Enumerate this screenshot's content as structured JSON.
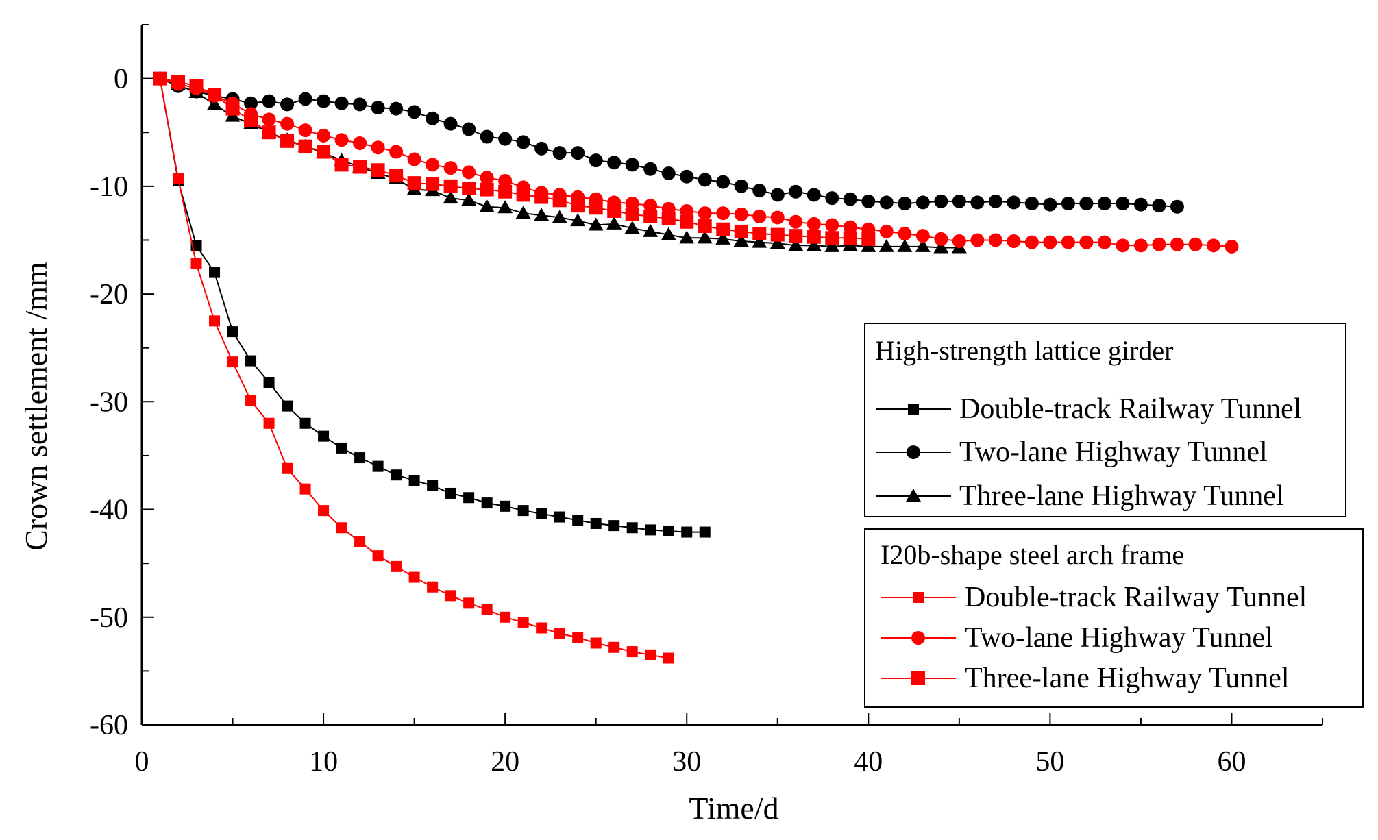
{
  "chart_data": {
    "type": "line",
    "title": "",
    "xlabel": "Time/d",
    "ylabel": "Crown settlement  /mm",
    "xlim": [
      0,
      65
    ],
    "ylim": [
      -60,
      5
    ],
    "xticks": [
      0,
      10,
      20,
      30,
      40,
      50,
      60
    ],
    "yticks": [
      0,
      -10,
      -20,
      -30,
      -40,
      -50,
      -60
    ],
    "grid": false,
    "legend": [
      {
        "title": "High-strength lattice girder",
        "position": "right-middle",
        "entries": [
          "Double-track Railway Tunnel",
          "Two-lane Highway Tunnel",
          "Three-lane Highway Tunnel"
        ]
      },
      {
        "title": "I20b-shape steel arch frame",
        "position": "right-bottom",
        "entries": [
          "Double-track Railway Tunnel",
          "Two-lane Highway Tunnel",
          "Three-lane Highway Tunnel"
        ]
      }
    ],
    "series": [
      {
        "name": "Double-track Railway Tunnel",
        "group": "High-strength lattice girder",
        "color": "#000000",
        "marker": "square",
        "x": [
          1,
          2,
          3,
          4,
          5,
          6,
          7,
          8,
          9,
          10,
          11,
          12,
          13,
          14,
          15,
          16,
          17,
          18,
          19,
          20,
          21,
          22,
          23,
          24,
          25,
          26,
          27,
          28,
          29,
          30,
          31
        ],
        "y": [
          0,
          -9.5,
          -15.5,
          -18,
          -23.5,
          -26.2,
          -28.2,
          -30.4,
          -32,
          -33.2,
          -34.3,
          -35.2,
          -36,
          -36.8,
          -37.3,
          -37.8,
          -38.5,
          -38.9,
          -39.4,
          -39.7,
          -40.1,
          -40.4,
          -40.7,
          -41,
          -41.3,
          -41.5,
          -41.7,
          -41.9,
          -42,
          -42.1,
          -42.1
        ]
      },
      {
        "name": "Two-lane Highway Tunnel",
        "group": "High-strength lattice girder",
        "color": "#000000",
        "marker": "circle",
        "x": [
          1,
          2,
          3,
          4,
          5,
          6,
          7,
          8,
          9,
          10,
          11,
          12,
          13,
          14,
          15,
          16,
          17,
          18,
          19,
          20,
          21,
          22,
          23,
          24,
          25,
          26,
          27,
          28,
          29,
          30,
          31,
          32,
          33,
          34,
          35,
          36,
          37,
          38,
          39,
          40,
          41,
          42,
          43,
          44,
          45,
          46,
          47,
          48,
          49,
          50,
          51,
          52,
          53,
          54,
          55,
          56,
          57
        ],
        "y": [
          0,
          -0.7,
          -1.2,
          -1.6,
          -1.9,
          -2.3,
          -2.1,
          -2.4,
          -1.9,
          -2.1,
          -2.3,
          -2.4,
          -2.7,
          -2.8,
          -3.1,
          -3.7,
          -4.2,
          -4.7,
          -5.4,
          -5.6,
          -5.9,
          -6.5,
          -6.9,
          -6.9,
          -7.6,
          -7.8,
          -8,
          -8.4,
          -8.8,
          -9.1,
          -9.4,
          -9.6,
          -10,
          -10.4,
          -10.8,
          -10.5,
          -10.8,
          -11.1,
          -11.2,
          -11.4,
          -11.5,
          -11.6,
          -11.5,
          -11.4,
          -11.4,
          -11.5,
          -11.4,
          -11.5,
          -11.6,
          -11.7,
          -11.6,
          -11.6,
          -11.6,
          -11.6,
          -11.7,
          -11.8,
          -11.9
        ]
      },
      {
        "name": "Three-lane Highway Tunnel",
        "group": "High-strength lattice girder",
        "color": "#000000",
        "marker": "triangle",
        "x": [
          1,
          2,
          3,
          4,
          5,
          6,
          7,
          8,
          9,
          10,
          11,
          12,
          13,
          14,
          15,
          16,
          17,
          18,
          19,
          20,
          21,
          22,
          23,
          24,
          25,
          26,
          27,
          28,
          29,
          30,
          31,
          32,
          33,
          34,
          35,
          36,
          37,
          38,
          39,
          40,
          41,
          42,
          43,
          44,
          45
        ],
        "y": [
          0,
          -0.6,
          -1.3,
          -2.4,
          -3.5,
          -4.2,
          -5,
          -5.7,
          -6.3,
          -6.9,
          -7.6,
          -8.2,
          -8.8,
          -9.3,
          -10.3,
          -10.4,
          -11.1,
          -11.3,
          -11.9,
          -12,
          -12.5,
          -12.7,
          -12.9,
          -13.2,
          -13.6,
          -13.5,
          -13.9,
          -14.2,
          -14.5,
          -14.8,
          -14.8,
          -14.9,
          -15.1,
          -15.2,
          -15.3,
          -15.5,
          -15.5,
          -15.6,
          -15.5,
          -15.6,
          -15.6,
          -15.6,
          -15.6,
          -15.7,
          -15.7
        ]
      },
      {
        "name": "Double-track Railway Tunnel",
        "group": "I20b-shape steel arch frame",
        "color": "#ff0000",
        "marker": "square",
        "x": [
          1,
          2,
          3,
          4,
          5,
          6,
          7,
          8,
          9,
          10,
          11,
          12,
          13,
          14,
          15,
          16,
          17,
          18,
          19,
          20,
          21,
          22,
          23,
          24,
          25,
          26,
          27,
          28,
          29
        ],
        "y": [
          0,
          -9.3,
          -17.2,
          -22.5,
          -26.3,
          -29.9,
          -32,
          -36.2,
          -38.1,
          -40.1,
          -41.7,
          -43,
          -44.3,
          -45.3,
          -46.3,
          -47.2,
          -48,
          -48.7,
          -49.3,
          -50,
          -50.5,
          -51,
          -51.5,
          -51.9,
          -52.4,
          -52.8,
          -53.2,
          -53.5,
          -53.8
        ]
      },
      {
        "name": "Two-lane Highway Tunnel",
        "group": "I20b-shape steel arch frame",
        "color": "#ff0000",
        "marker": "circle",
        "x": [
          1,
          2,
          3,
          4,
          5,
          6,
          7,
          8,
          9,
          10,
          11,
          12,
          13,
          14,
          15,
          16,
          17,
          18,
          19,
          20,
          21,
          22,
          23,
          24,
          25,
          26,
          27,
          28,
          29,
          30,
          31,
          32,
          33,
          34,
          35,
          36,
          37,
          38,
          39,
          40,
          41,
          42,
          43,
          44,
          45,
          46,
          47,
          48,
          49,
          50,
          51,
          52,
          53,
          54,
          55,
          56,
          57,
          58,
          59,
          60
        ],
        "y": [
          0,
          -0.5,
          -0.9,
          -1.6,
          -2.3,
          -3.3,
          -3.8,
          -4.2,
          -4.8,
          -5.3,
          -5.7,
          -6,
          -6.4,
          -6.8,
          -7.5,
          -8,
          -8.3,
          -8.7,
          -9.2,
          -9.5,
          -10.1,
          -10.6,
          -10.8,
          -11,
          -11.2,
          -11.5,
          -11.6,
          -11.8,
          -12.1,
          -12.3,
          -12.5,
          -12.5,
          -12.6,
          -12.8,
          -12.9,
          -13.3,
          -13.5,
          -13.6,
          -13.8,
          -14,
          -14.2,
          -14.4,
          -14.6,
          -14.9,
          -15.1,
          -15,
          -15,
          -15.1,
          -15.2,
          -15.2,
          -15.2,
          -15.2,
          -15.2,
          -15.5,
          -15.5,
          -15.4,
          -15.4,
          -15.4,
          -15.5,
          -15.6
        ]
      },
      {
        "name": "Three-lane Highway Tunnel",
        "group": "I20b-shape steel arch frame",
        "color": "#ff0000",
        "marker": "square-large",
        "x": [
          1,
          2,
          3,
          4,
          5,
          6,
          7,
          8,
          9,
          10,
          11,
          12,
          13,
          14,
          15,
          16,
          17,
          18,
          19,
          20,
          21,
          22,
          23,
          24,
          25,
          26,
          27,
          28,
          29,
          30,
          31,
          32,
          33,
          34,
          35,
          36,
          37,
          38,
          39,
          40
        ],
        "y": [
          0,
          -0.3,
          -0.7,
          -1.5,
          -2.8,
          -3.9,
          -5,
          -5.8,
          -6.3,
          -6.8,
          -8,
          -8.2,
          -8.5,
          -9,
          -9.7,
          -9.8,
          -10,
          -10.2,
          -10.3,
          -10.5,
          -10.8,
          -11,
          -11.3,
          -11.8,
          -12,
          -12.3,
          -12.6,
          -12.8,
          -13,
          -13.3,
          -13.7,
          -14,
          -14.2,
          -14.4,
          -14.5,
          -14.6,
          -14.7,
          -14.8,
          -14.8,
          -14.9
        ]
      }
    ]
  }
}
